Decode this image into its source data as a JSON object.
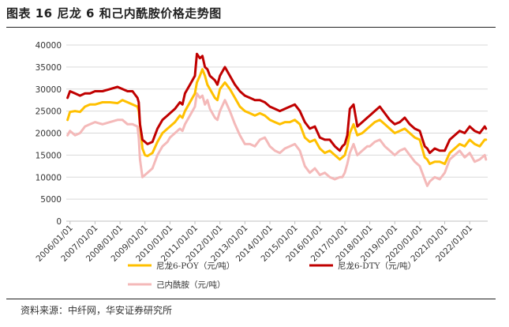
{
  "figure": {
    "title": "图表 16  尼龙 6 和己内酰胺价格走势图",
    "source": "资料来源：中纤网，华安证券研究所"
  },
  "chart_data": {
    "type": "line",
    "title": "尼龙 6 和己内酰胺价格走势图",
    "xlabel": "",
    "ylabel": "",
    "ylim": [
      0,
      40000
    ],
    "yticks": [
      0,
      5000,
      10000,
      15000,
      20000,
      25000,
      30000,
      35000,
      40000
    ],
    "x_range": [
      "2005-11",
      "2022-09"
    ],
    "x_tick_labels": [
      "2006/01/01",
      "2007/01/01",
      "2008/01/01",
      "2009/01/01",
      "2010/01/01",
      "2011/01/01",
      "2012/01/01",
      "2013/01/01",
      "2014/01/01",
      "2015/01/01",
      "2016/01/01",
      "2017/01/01",
      "2018/01/01",
      "2019/01/01",
      "2020/01/01",
      "2021/01/01",
      "2022/01/01"
    ],
    "legend_position": "bottom",
    "series": [
      {
        "name": "尼龙6-POY（元/吨）",
        "color": "#FFC000",
        "x": [
          2005.9,
          2006.0,
          2006.2,
          2006.4,
          2006.6,
          2006.8,
          2007.0,
          2007.3,
          2007.6,
          2007.9,
          2008.1,
          2008.3,
          2008.5,
          2008.7,
          2008.75,
          2008.8,
          2008.9,
          2009.0,
          2009.1,
          2009.3,
          2009.5,
          2009.7,
          2009.9,
          2010.0,
          2010.2,
          2010.4,
          2010.5,
          2010.6,
          2010.8,
          2011.0,
          2011.08,
          2011.2,
          2011.3,
          2011.4,
          2011.5,
          2011.6,
          2011.8,
          2011.9,
          2012.0,
          2012.2,
          2012.4,
          2012.6,
          2012.8,
          2013.0,
          2013.2,
          2013.4,
          2013.6,
          2013.8,
          2014.0,
          2014.2,
          2014.4,
          2014.6,
          2014.8,
          2015.0,
          2015.2,
          2015.4,
          2015.6,
          2015.8,
          2016.0,
          2016.2,
          2016.4,
          2016.6,
          2016.8,
          2016.9,
          2017.0,
          2017.1,
          2017.2,
          2017.35,
          2017.5,
          2017.7,
          2017.9,
          2018.0,
          2018.2,
          2018.4,
          2018.6,
          2018.8,
          2019.0,
          2019.2,
          2019.4,
          2019.6,
          2019.8,
          2020.0,
          2020.2,
          2020.3,
          2020.4,
          2020.6,
          2020.8,
          2021.0,
          2021.2,
          2021.4,
          2021.6,
          2021.8,
          2022.0,
          2022.2,
          2022.4,
          2022.6,
          2022.65
        ],
        "values": [
          23000,
          24800,
          25000,
          24800,
          26000,
          26500,
          26500,
          27000,
          27000,
          26800,
          27500,
          27000,
          26500,
          26000,
          25000,
          22000,
          16500,
          15000,
          14800,
          15500,
          18000,
          20000,
          21000,
          21500,
          22500,
          24000,
          23500,
          25000,
          27000,
          29000,
          31500,
          33000,
          34500,
          33000,
          31000,
          30000,
          28000,
          27500,
          30000,
          31500,
          30000,
          28000,
          26000,
          25000,
          24500,
          24000,
          24500,
          24000,
          23000,
          22500,
          22000,
          22500,
          22500,
          23000,
          22000,
          19000,
          18000,
          18500,
          16500,
          15500,
          16000,
          15000,
          14000,
          14500,
          15000,
          17000,
          20000,
          22000,
          19500,
          20000,
          21000,
          21500,
          22500,
          23000,
          22000,
          21000,
          20000,
          20500,
          21000,
          20000,
          19000,
          18500,
          14500,
          14000,
          13000,
          13500,
          13500,
          13000,
          15500,
          16500,
          17500,
          17000,
          18500,
          17500,
          17000,
          18500,
          18500
        ]
      },
      {
        "name": "尼龙6-DTY（元/吨）",
        "color": "#C00000",
        "x": [
          2005.9,
          2006.0,
          2006.2,
          2006.4,
          2006.6,
          2006.8,
          2007.0,
          2007.3,
          2007.6,
          2007.9,
          2008.1,
          2008.3,
          2008.5,
          2008.7,
          2008.75,
          2008.8,
          2008.9,
          2009.0,
          2009.1,
          2009.3,
          2009.5,
          2009.7,
          2009.9,
          2010.0,
          2010.2,
          2010.4,
          2010.5,
          2010.6,
          2010.8,
          2011.0,
          2011.08,
          2011.2,
          2011.3,
          2011.4,
          2011.5,
          2011.6,
          2011.8,
          2011.9,
          2012.0,
          2012.2,
          2012.4,
          2012.6,
          2012.8,
          2013.0,
          2013.2,
          2013.4,
          2013.6,
          2013.8,
          2014.0,
          2014.2,
          2014.4,
          2014.6,
          2014.8,
          2015.0,
          2015.2,
          2015.4,
          2015.6,
          2015.8,
          2016.0,
          2016.2,
          2016.4,
          2016.6,
          2016.8,
          2016.9,
          2017.0,
          2017.1,
          2017.2,
          2017.35,
          2017.5,
          2017.7,
          2017.9,
          2018.0,
          2018.2,
          2018.4,
          2018.6,
          2018.8,
          2019.0,
          2019.2,
          2019.4,
          2019.6,
          2019.8,
          2020.0,
          2020.2,
          2020.3,
          2020.4,
          2020.6,
          2020.8,
          2021.0,
          2021.2,
          2021.4,
          2021.6,
          2021.8,
          2022.0,
          2022.2,
          2022.4,
          2022.6,
          2022.65
        ],
        "values": [
          28000,
          29500,
          29000,
          28500,
          29000,
          29000,
          29500,
          29500,
          30000,
          30500,
          30000,
          29500,
          29500,
          28000,
          27000,
          22000,
          18500,
          18000,
          17500,
          18000,
          21000,
          23000,
          24000,
          24500,
          25500,
          27000,
          26500,
          29000,
          31000,
          33000,
          38000,
          37000,
          37500,
          35000,
          34500,
          33000,
          32000,
          31000,
          33000,
          35000,
          33000,
          31000,
          29500,
          28500,
          28000,
          27500,
          27500,
          27000,
          26000,
          25500,
          25000,
          25500,
          26000,
          26500,
          25000,
          22500,
          21000,
          21500,
          19000,
          18500,
          18500,
          17000,
          16000,
          17000,
          17500,
          19500,
          25500,
          26500,
          21500,
          22500,
          23500,
          24000,
          25000,
          26000,
          24500,
          23000,
          22000,
          22500,
          23500,
          22000,
          21000,
          20500,
          17000,
          16500,
          15500,
          16500,
          16000,
          16000,
          18500,
          19500,
          20500,
          20000,
          21500,
          20500,
          20000,
          21500,
          21000
        ]
      },
      {
        "name": "己内酰胺（元/吨）",
        "color": "#F4B9B9",
        "x": [
          2005.9,
          2006.0,
          2006.2,
          2006.4,
          2006.6,
          2006.8,
          2007.0,
          2007.3,
          2007.6,
          2007.9,
          2008.1,
          2008.3,
          2008.5,
          2008.7,
          2008.75,
          2008.8,
          2008.9,
          2009.0,
          2009.1,
          2009.3,
          2009.5,
          2009.7,
          2009.9,
          2010.0,
          2010.2,
          2010.4,
          2010.5,
          2010.6,
          2010.8,
          2011.0,
          2011.08,
          2011.2,
          2011.3,
          2011.4,
          2011.5,
          2011.6,
          2011.8,
          2011.9,
          2012.0,
          2012.2,
          2012.4,
          2012.6,
          2012.8,
          2013.0,
          2013.2,
          2013.4,
          2013.6,
          2013.8,
          2014.0,
          2014.2,
          2014.4,
          2014.6,
          2014.8,
          2015.0,
          2015.2,
          2015.4,
          2015.6,
          2015.8,
          2016.0,
          2016.2,
          2016.4,
          2016.6,
          2016.8,
          2016.9,
          2017.0,
          2017.1,
          2017.2,
          2017.35,
          2017.5,
          2017.7,
          2017.9,
          2018.0,
          2018.2,
          2018.4,
          2018.6,
          2018.8,
          2019.0,
          2019.2,
          2019.4,
          2019.6,
          2019.8,
          2020.0,
          2020.2,
          2020.3,
          2020.4,
          2020.6,
          2020.8,
          2021.0,
          2021.2,
          2021.4,
          2021.6,
          2021.8,
          2022.0,
          2022.2,
          2022.4,
          2022.6,
          2022.65
        ],
        "values": [
          19500,
          20500,
          19500,
          20000,
          21500,
          22000,
          22500,
          22000,
          22500,
          23000,
          23000,
          22000,
          22000,
          21500,
          19000,
          14000,
          10000,
          10500,
          11000,
          12000,
          15000,
          17000,
          18000,
          19000,
          20000,
          21000,
          20500,
          22000,
          24000,
          26000,
          29000,
          28000,
          28500,
          26500,
          27500,
          25500,
          23500,
          23000,
          25000,
          27500,
          25000,
          22000,
          19500,
          17500,
          17500,
          17000,
          18500,
          19000,
          17000,
          16000,
          15500,
          16500,
          17000,
          17500,
          16000,
          12500,
          11000,
          12000,
          10500,
          11000,
          10000,
          9500,
          10000,
          10000,
          11000,
          13000,
          15500,
          17500,
          15000,
          16000,
          17000,
          17000,
          18000,
          18500,
          17000,
          16000,
          15000,
          16000,
          16500,
          15000,
          13500,
          12500,
          9500,
          8000,
          9000,
          10000,
          9500,
          11000,
          14000,
          15000,
          16000,
          14500,
          15500,
          13500,
          14000,
          15000,
          14000
        ]
      }
    ]
  }
}
